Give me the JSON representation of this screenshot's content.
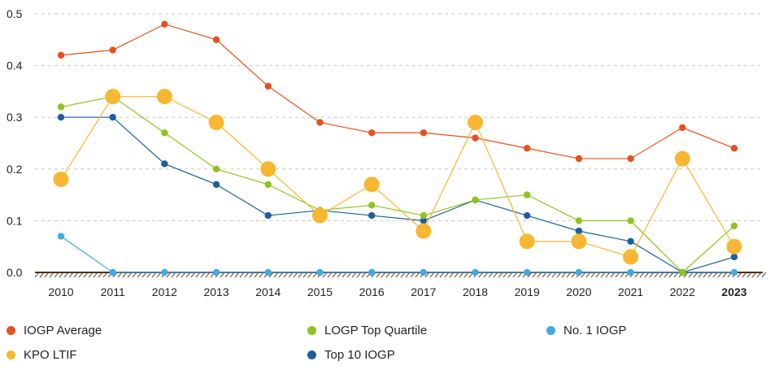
{
  "chart_data": {
    "type": "line",
    "categories": [
      "2010",
      "2011",
      "2012",
      "2013",
      "2014",
      "2015",
      "2016",
      "2017",
      "2018",
      "2019",
      "2020",
      "2021",
      "2022",
      "2023"
    ],
    "highlight_category": "2023",
    "yticks": [
      "0.0",
      "0.1",
      "0.2",
      "0.3",
      "0.4",
      "0.5"
    ],
    "ylim": [
      0,
      0.5
    ],
    "grid": "horizontal-dashed",
    "legend_position": "bottom",
    "series": [
      {
        "name": "IOGP Average",
        "color": "#e8501e",
        "marker": "small",
        "values": [
          0.42,
          0.43,
          0.48,
          0.45,
          0.36,
          0.29,
          0.27,
          0.27,
          0.26,
          0.24,
          0.22,
          0.22,
          0.28,
          0.24
        ]
      },
      {
        "name": "LOGP Top Quartile",
        "color": "#8fc31f",
        "marker": "small",
        "values": [
          0.32,
          0.34,
          0.27,
          0.2,
          0.17,
          0.12,
          0.13,
          0.11,
          0.14,
          0.15,
          0.1,
          0.1,
          0.0,
          0.09
        ]
      },
      {
        "name": "No. 1 IOGP",
        "color": "#41a9e0",
        "marker": "small",
        "values": [
          0.07,
          0.0,
          0.0,
          0.0,
          0.0,
          0.0,
          0.0,
          0.0,
          0.0,
          0.0,
          0.0,
          0.0,
          0.0,
          0.0
        ]
      },
      {
        "name": "KPO LTIF",
        "color": "#f7b733",
        "marker": "large",
        "values": [
          0.18,
          0.34,
          0.34,
          0.29,
          0.2,
          0.11,
          0.17,
          0.08,
          0.29,
          0.06,
          0.06,
          0.03,
          0.22,
          0.05
        ]
      },
      {
        "name": "Top 10 IOGP",
        "color": "#1e5f9a",
        "marker": "small",
        "values": [
          0.3,
          0.3,
          0.21,
          0.17,
          0.11,
          0.12,
          0.11,
          0.1,
          0.14,
          0.11,
          0.08,
          0.06,
          0.0,
          0.03
        ]
      }
    ],
    "legend": [
      {
        "name": "IOGP Average",
        "color": "#e8501e"
      },
      {
        "name": "LOGP Top Quartile",
        "color": "#8fc31f"
      },
      {
        "name": "No. 1 IOGP",
        "color": "#41a9e0"
      },
      {
        "name": "KPO LTIF",
        "color": "#f7b733"
      },
      {
        "name": "Top 10 IOGP",
        "color": "#1e5f9a"
      }
    ]
  }
}
